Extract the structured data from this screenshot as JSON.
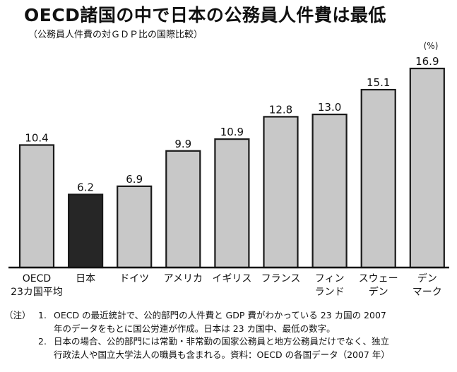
{
  "title": "OECD諸国の中で日本の公務員人件費は最低",
  "subtitle": "（公務員人件費の対ＧＤＰ比の国際比較）",
  "unit": "(%)",
  "colors": {
    "bar": "#c8c8c8",
    "highlight": "#262626",
    "outline": "#1a1a1a"
  },
  "chart_data": {
    "type": "bar",
    "categories": [
      [
        "OECD",
        "23カ国平均"
      ],
      [
        "日本"
      ],
      [
        "ドイツ"
      ],
      [
        "アメリカ"
      ],
      [
        "イギリス"
      ],
      [
        "フランス"
      ],
      [
        "フィン",
        "ランド"
      ],
      [
        "スウェー",
        "デン"
      ],
      [
        "デン",
        "マーク"
      ]
    ],
    "values": [
      10.4,
      6.2,
      6.9,
      9.9,
      10.9,
      12.8,
      13.0,
      15.1,
      16.9
    ],
    "value_labels": [
      "10.4",
      "6.2",
      "6.9",
      "9.9",
      "10.9",
      "12.8",
      "13.0",
      "15.1",
      "16.9"
    ],
    "highlight": "日本",
    "ylim": [
      0,
      16.9
    ],
    "grid": false,
    "legend": "none"
  },
  "notes": {
    "prefix": "（注）",
    "items": [
      {
        "num": "1.",
        "lines": [
          "OECD の最近統計で、公的部門の人件費と GDP 費がわかっている 23 カ国の 2007",
          "年のデータをもとに国公労連が作成。日本は 23 カ国中、最低の数字。"
        ]
      },
      {
        "num": "2.",
        "lines": [
          "日本の場合、公的部門には常勤・非常勤の国家公務員と地方公務員だけでなく、独立",
          "行政法人や国立大学法人の職員も含まれる。資料：OECD の各国データ（2007 年）"
        ]
      }
    ]
  }
}
